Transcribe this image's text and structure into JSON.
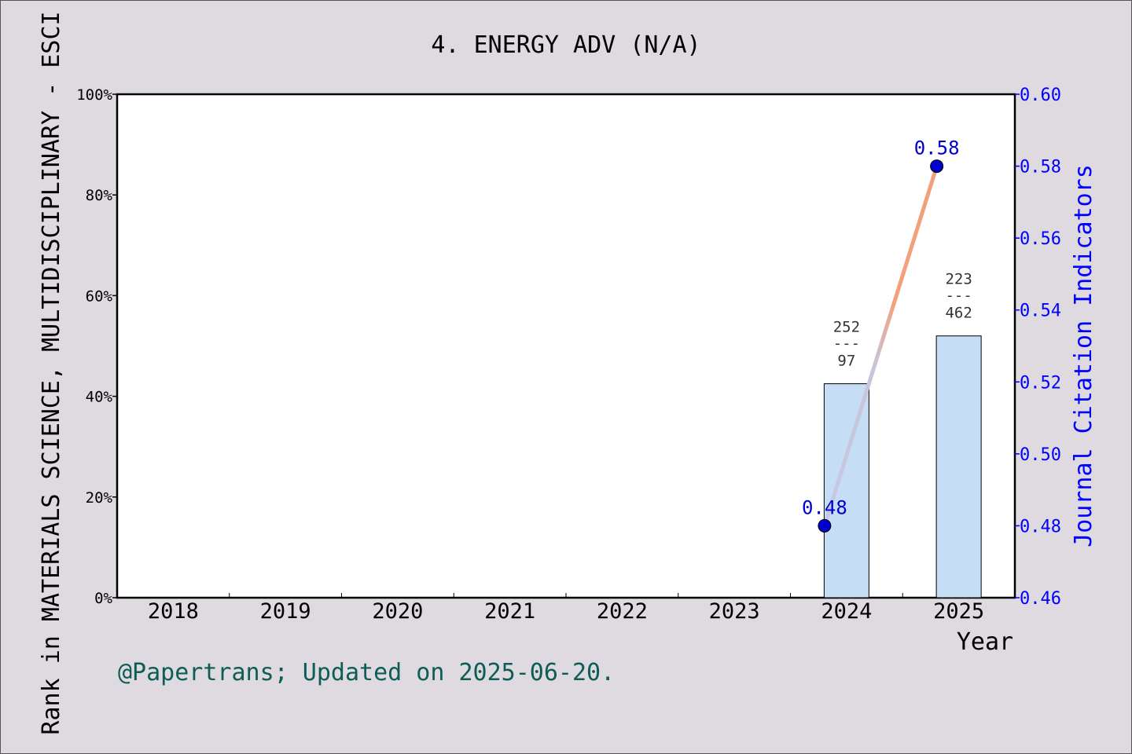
{
  "chart_data": {
    "type": "bar",
    "title": "4. ENERGY ADV (N/A)",
    "xlabel": "Year",
    "ylabel": "Rank in MATERIALS SCIENCE, MULTIDISCIPLINARY - ESCI",
    "y2label": "Journal Citation Indicators",
    "categories": [
      "2018",
      "2019",
      "2020",
      "2021",
      "2022",
      "2023",
      "2024",
      "2025"
    ],
    "ylim": [
      0,
      100
    ],
    "y_ticks": [
      "0%",
      "20%",
      "40%",
      "60%",
      "80%",
      "100%"
    ],
    "y2lim": [
      0.46,
      0.6
    ],
    "y2_ticks": [
      "0.46",
      "0.48",
      "0.50",
      "0.52",
      "0.54",
      "0.56",
      "0.58",
      "0.60"
    ],
    "bars": [
      {
        "category": "2024",
        "value": 42.5,
        "rank_label": "252",
        "total_label": "97",
        "separator": "---"
      },
      {
        "category": "2025",
        "value": 52.0,
        "rank_label": "223",
        "total_label": "462",
        "separator": "---"
      }
    ],
    "series": [
      {
        "points": [
          {
            "category": "2024",
            "value": 0.48,
            "label": "0.48"
          },
          {
            "category": "2025",
            "value": 0.58,
            "label": "0.58"
          }
        ]
      }
    ],
    "footer": "@Papertrans; Updated on 2025-06-20.",
    "colors": {
      "background": "#dedae0",
      "plot": "#ffffff",
      "bar_fill": "#c6def5",
      "line_start": "#c7c9e6",
      "line_end": "#f4a07a",
      "point": "#0000cd",
      "right_axis": "#0000ff",
      "footer": "#0d5c55"
    }
  }
}
